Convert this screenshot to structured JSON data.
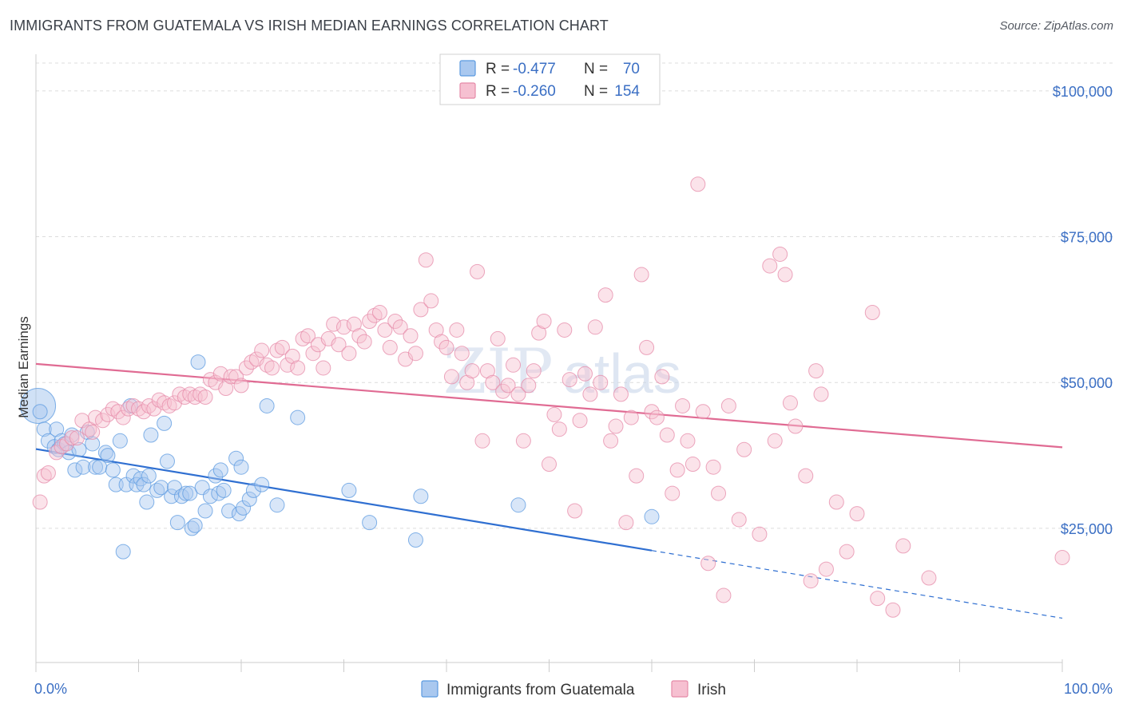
{
  "title": "IMMIGRANTS FROM GUATEMALA VS IRISH MEDIAN EARNINGS CORRELATION CHART",
  "source": "Source: ZipAtlas.com",
  "watermark": "ZIPatlas",
  "colors": {
    "blue": "#5b9ae0",
    "blue_fill": "#a9c8ef",
    "blue_line": "#2f6fd1",
    "pink": "#e58aa8",
    "pink_fill": "#f6c0d1",
    "pink_line": "#e06b93",
    "tick_text": "#3b6fc4",
    "grid": "#dcdcdc"
  },
  "legend": {
    "rows": [
      {
        "r_label": "R =",
        "r_value": "-0.477",
        "n_label": "N =",
        "n_value": "70",
        "color": "#5b9ae0"
      },
      {
        "r_label": "R =",
        "r_value": "-0.260",
        "n_label": "N =",
        "n_value": "154",
        "color": "#e58aa8"
      }
    ]
  },
  "chart_data": {
    "type": "scatter",
    "title": "IMMIGRANTS FROM GUATEMALA VS IRISH MEDIAN EARNINGS CORRELATION CHART",
    "xlabel": "",
    "ylabel": "Median Earnings",
    "xlim": [
      0,
      100
    ],
    "ylim": [
      2000,
      106000
    ],
    "x_tick_labels": [
      "0.0%",
      "100.0%"
    ],
    "y_ticks": [
      25000,
      50000,
      75000,
      100000
    ],
    "y_tick_labels": [
      "$25,000",
      "$50,000",
      "$75,000",
      "$100,000"
    ],
    "grid": true,
    "legend_position": "top-center",
    "series": [
      {
        "name": "Immigrants from Guatemala",
        "color": "#5b9ae0",
        "trend": {
          "x": [
            0,
            60
          ],
          "y": [
            38600,
            21200
          ],
          "dashed_extension": {
            "x": [
              60,
              100
            ],
            "y": [
              21200,
              9600
            ]
          }
        },
        "points": [
          [
            0.2,
            46000
          ],
          [
            0.4,
            45000
          ],
          [
            0.8,
            42000
          ],
          [
            1.2,
            40000
          ],
          [
            1.8,
            39000
          ],
          [
            2.0,
            42000
          ],
          [
            2.2,
            38500
          ],
          [
            2.5,
            40000
          ],
          [
            2.8,
            39500
          ],
          [
            3.2,
            38000
          ],
          [
            3.5,
            41000
          ],
          [
            3.8,
            35000
          ],
          [
            4.2,
            38500
          ],
          [
            4.6,
            35500
          ],
          [
            5.0,
            41500
          ],
          [
            5.5,
            39500
          ],
          [
            5.8,
            35500
          ],
          [
            6.2,
            35500
          ],
          [
            6.8,
            38000
          ],
          [
            7.0,
            37500
          ],
          [
            7.5,
            35000
          ],
          [
            7.8,
            32500
          ],
          [
            8.2,
            40000
          ],
          [
            8.5,
            21000
          ],
          [
            8.8,
            32500
          ],
          [
            9.2,
            46000
          ],
          [
            9.5,
            34000
          ],
          [
            9.8,
            32500
          ],
          [
            10.2,
            33500
          ],
          [
            10.5,
            32500
          ],
          [
            10.8,
            29500
          ],
          [
            11.0,
            34000
          ],
          [
            11.2,
            41000
          ],
          [
            11.8,
            31500
          ],
          [
            12.2,
            32000
          ],
          [
            12.5,
            43000
          ],
          [
            12.8,
            36500
          ],
          [
            13.2,
            30500
          ],
          [
            13.5,
            32000
          ],
          [
            13.8,
            26000
          ],
          [
            14.2,
            30500
          ],
          [
            14.6,
            31000
          ],
          [
            15.0,
            31000
          ],
          [
            15.2,
            25000
          ],
          [
            15.5,
            25500
          ],
          [
            15.8,
            53500
          ],
          [
            16.2,
            32000
          ],
          [
            16.5,
            28000
          ],
          [
            17.0,
            30500
          ],
          [
            17.5,
            34000
          ],
          [
            17.8,
            31000
          ],
          [
            18.0,
            35000
          ],
          [
            18.3,
            31500
          ],
          [
            18.8,
            28000
          ],
          [
            19.5,
            37000
          ],
          [
            19.8,
            27500
          ],
          [
            20.0,
            35500
          ],
          [
            20.2,
            28500
          ],
          [
            20.8,
            30000
          ],
          [
            21.2,
            31500
          ],
          [
            22.0,
            32500
          ],
          [
            22.5,
            46000
          ],
          [
            23.5,
            29000
          ],
          [
            25.5,
            44000
          ],
          [
            30.5,
            31500
          ],
          [
            32.5,
            26000
          ],
          [
            37.0,
            23000
          ],
          [
            37.5,
            30500
          ],
          [
            47.0,
            29000
          ],
          [
            60.0,
            27000
          ]
        ]
      },
      {
        "name": "Irish",
        "color": "#e58aa8",
        "trend": {
          "x": [
            0,
            100
          ],
          "y": [
            53200,
            38900
          ]
        },
        "points": [
          [
            0.4,
            29500
          ],
          [
            0.8,
            34000
          ],
          [
            1.2,
            34500
          ],
          [
            2.0,
            38000
          ],
          [
            2.5,
            39000
          ],
          [
            3.0,
            39500
          ],
          [
            3.5,
            40500
          ],
          [
            4.0,
            40500
          ],
          [
            4.5,
            43500
          ],
          [
            5.2,
            42000
          ],
          [
            5.5,
            41500
          ],
          [
            5.8,
            44000
          ],
          [
            6.5,
            43500
          ],
          [
            7.0,
            44500
          ],
          [
            7.5,
            45500
          ],
          [
            8.0,
            45000
          ],
          [
            8.5,
            44000
          ],
          [
            9.0,
            45500
          ],
          [
            9.5,
            46000
          ],
          [
            10.0,
            45500
          ],
          [
            10.5,
            45000
          ],
          [
            11.0,
            46000
          ],
          [
            11.5,
            45500
          ],
          [
            12.0,
            47000
          ],
          [
            12.5,
            46500
          ],
          [
            13.0,
            46000
          ],
          [
            13.5,
            46500
          ],
          [
            14.0,
            48000
          ],
          [
            14.5,
            47500
          ],
          [
            15.0,
            48000
          ],
          [
            15.5,
            47500
          ],
          [
            16.0,
            48000
          ],
          [
            16.5,
            47500
          ],
          [
            17.0,
            50500
          ],
          [
            17.5,
            50000
          ],
          [
            18.0,
            51500
          ],
          [
            18.5,
            49000
          ],
          [
            19.0,
            51000
          ],
          [
            19.5,
            51000
          ],
          [
            20.0,
            49500
          ],
          [
            20.5,
            52500
          ],
          [
            21.0,
            53500
          ],
          [
            21.5,
            54000
          ],
          [
            22.0,
            55500
          ],
          [
            22.5,
            53000
          ],
          [
            23.0,
            52500
          ],
          [
            23.5,
            55500
          ],
          [
            24.0,
            56000
          ],
          [
            24.5,
            53000
          ],
          [
            25.0,
            54500
          ],
          [
            25.5,
            52500
          ],
          [
            26.0,
            57500
          ],
          [
            26.5,
            58000
          ],
          [
            27.0,
            55000
          ],
          [
            27.5,
            56500
          ],
          [
            28.0,
            52500
          ],
          [
            28.5,
            57500
          ],
          [
            29.0,
            60000
          ],
          [
            29.5,
            56500
          ],
          [
            30.0,
            59500
          ],
          [
            30.5,
            55000
          ],
          [
            31.0,
            60000
          ],
          [
            31.5,
            58000
          ],
          [
            32.0,
            57000
          ],
          [
            32.5,
            60500
          ],
          [
            33.0,
            61500
          ],
          [
            33.5,
            62000
          ],
          [
            34.0,
            59000
          ],
          [
            34.5,
            56000
          ],
          [
            35.0,
            60500
          ],
          [
            35.5,
            59500
          ],
          [
            36.0,
            54000
          ],
          [
            36.5,
            58000
          ],
          [
            37.0,
            55000
          ],
          [
            37.5,
            62500
          ],
          [
            38.0,
            71000
          ],
          [
            38.5,
            64000
          ],
          [
            39.0,
            59000
          ],
          [
            39.5,
            57000
          ],
          [
            40.0,
            56000
          ],
          [
            40.5,
            51000
          ],
          [
            41.0,
            59000
          ],
          [
            41.5,
            55000
          ],
          [
            42.0,
            50000
          ],
          [
            42.5,
            52000
          ],
          [
            43.0,
            69000
          ],
          [
            43.5,
            40000
          ],
          [
            44.0,
            52000
          ],
          [
            44.5,
            50000
          ],
          [
            45.0,
            57500
          ],
          [
            45.5,
            48500
          ],
          [
            46.0,
            49500
          ],
          [
            46.5,
            53000
          ],
          [
            47.0,
            48000
          ],
          [
            47.5,
            40000
          ],
          [
            48.0,
            49500
          ],
          [
            48.5,
            52000
          ],
          [
            49.0,
            58500
          ],
          [
            49.5,
            60500
          ],
          [
            50.0,
            36000
          ],
          [
            50.5,
            44500
          ],
          [
            51.0,
            42000
          ],
          [
            51.5,
            59000
          ],
          [
            52.0,
            50500
          ],
          [
            52.5,
            28000
          ],
          [
            53.0,
            43500
          ],
          [
            53.5,
            51500
          ],
          [
            54.0,
            48000
          ],
          [
            54.5,
            59500
          ],
          [
            55.0,
            50000
          ],
          [
            55.5,
            65000
          ],
          [
            56.0,
            40000
          ],
          [
            56.5,
            42500
          ],
          [
            57.0,
            48000
          ],
          [
            57.5,
            26000
          ],
          [
            58.0,
            44000
          ],
          [
            58.5,
            34000
          ],
          [
            59.0,
            68500
          ],
          [
            59.5,
            56000
          ],
          [
            60.0,
            45000
          ],
          [
            60.5,
            44000
          ],
          [
            61.0,
            51000
          ],
          [
            61.5,
            41000
          ],
          [
            62.0,
            31000
          ],
          [
            62.5,
            35000
          ],
          [
            63.0,
            46000
          ],
          [
            63.5,
            40000
          ],
          [
            64.0,
            36000
          ],
          [
            64.5,
            84000
          ],
          [
            65.0,
            45000
          ],
          [
            65.5,
            19000
          ],
          [
            66.0,
            35500
          ],
          [
            66.5,
            31000
          ],
          [
            67.0,
            13500
          ],
          [
            67.5,
            46000
          ],
          [
            68.5,
            26500
          ],
          [
            69.0,
            38500
          ],
          [
            70.5,
            24000
          ],
          [
            71.5,
            70000
          ],
          [
            72.0,
            40000
          ],
          [
            72.5,
            72000
          ],
          [
            73.0,
            68500
          ],
          [
            73.5,
            46500
          ],
          [
            74.0,
            42500
          ],
          [
            75.0,
            34000
          ],
          [
            75.5,
            16000
          ],
          [
            76.0,
            52000
          ],
          [
            76.5,
            48000
          ],
          [
            77.0,
            18000
          ],
          [
            78.0,
            29500
          ],
          [
            79.0,
            21000
          ],
          [
            80.0,
            27500
          ],
          [
            81.5,
            62000
          ],
          [
            82.0,
            13000
          ],
          [
            83.5,
            11000
          ],
          [
            84.5,
            22000
          ],
          [
            87.0,
            16500
          ],
          [
            100.0,
            20000
          ]
        ]
      }
    ]
  },
  "bottom_legend": [
    {
      "label": "Immigrants from Guatemala",
      "color": "#5b9ae0"
    },
    {
      "label": "Irish",
      "color": "#e58aa8"
    }
  ]
}
